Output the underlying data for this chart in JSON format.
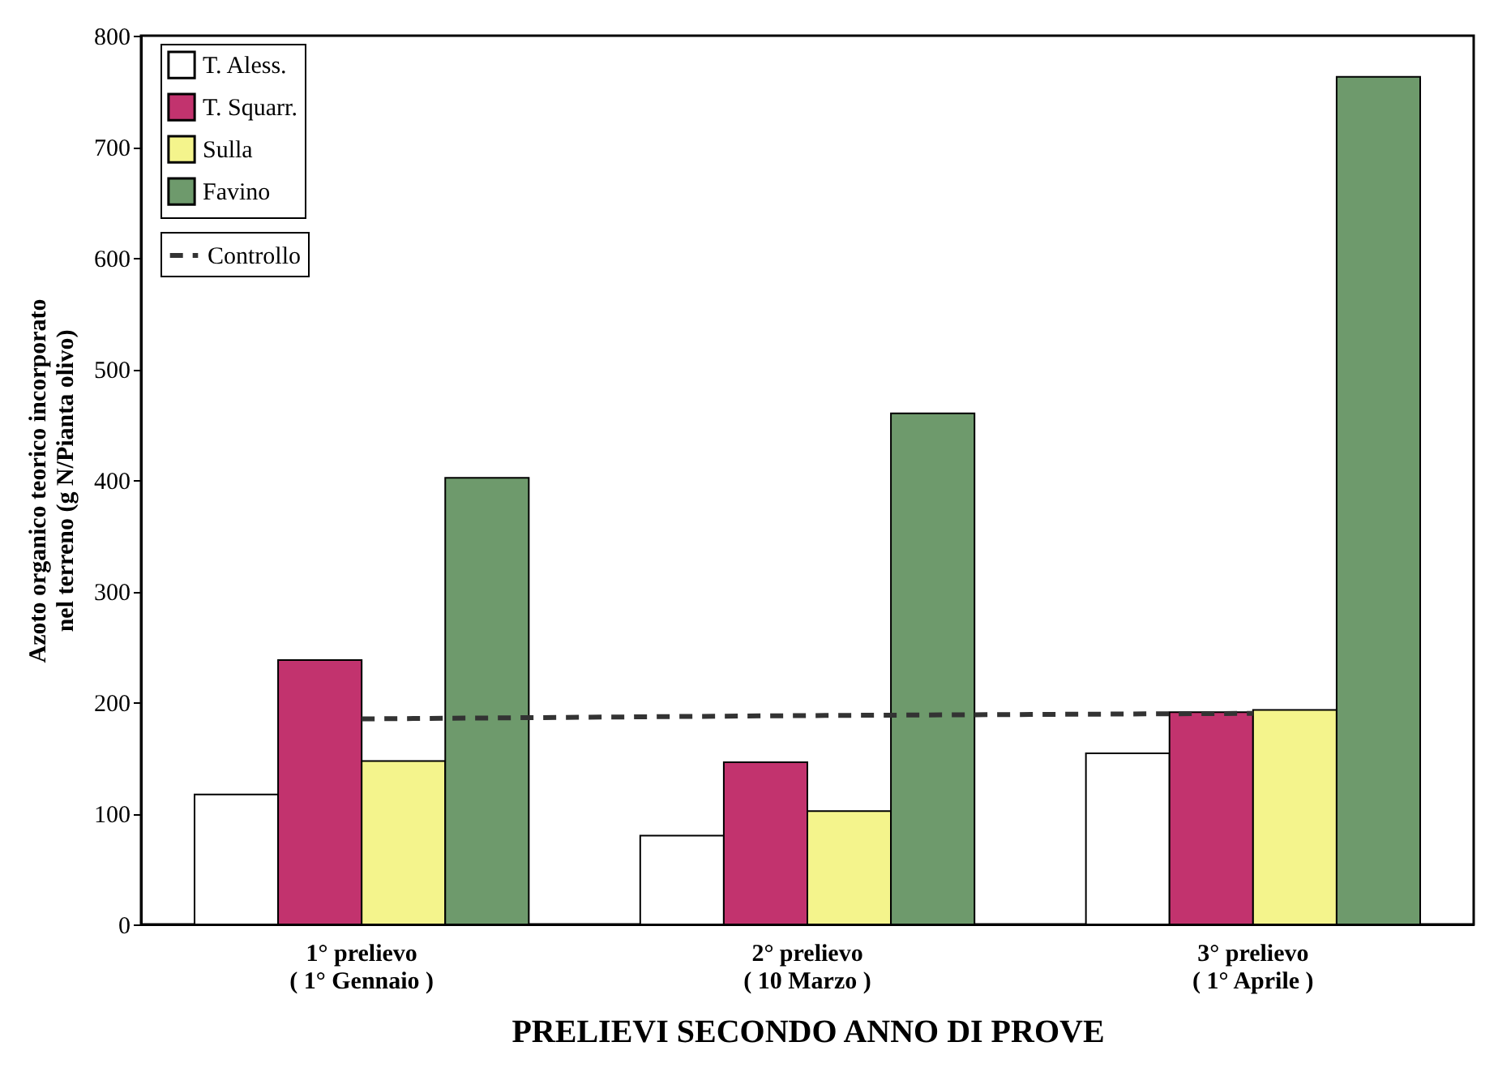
{
  "chart_data": {
    "type": "bar",
    "xlabel": "PRELIEVI SECONDO ANNO DI PROVE",
    "ylabel": "Azoto organico teorico incorporato\nnel terreno (g N/Pianta olivo)",
    "categories": [
      "1° prelievo\n( 1° Gennaio )",
      "2° prelievo\n( 10 Marzo )",
      "3° prelievo\n( 1° Aprile )"
    ],
    "series": [
      {
        "name": "T. Aless.",
        "color": "#ffffff",
        "values": [
          117,
          80,
          154
        ]
      },
      {
        "name": "T. Squarr.",
        "color": "#c2336e",
        "values": [
          238,
          146,
          191
        ]
      },
      {
        "name": "Sulla",
        "color": "#f4f48c",
        "values": [
          147,
          102,
          193
        ]
      },
      {
        "name": "Favino",
        "color": "#6e9a6c",
        "values": [
          402,
          460,
          763
        ]
      },
      {
        "name": "Controllo",
        "type": "line",
        "color": "#333333",
        "line_style": "dashed",
        "values": [
          185,
          188,
          190
        ]
      }
    ],
    "ylim": [
      0,
      800
    ],
    "yticks": [
      0,
      100,
      200,
      300,
      400,
      500,
      600,
      700,
      800
    ],
    "grid": false,
    "legend": "top left"
  }
}
